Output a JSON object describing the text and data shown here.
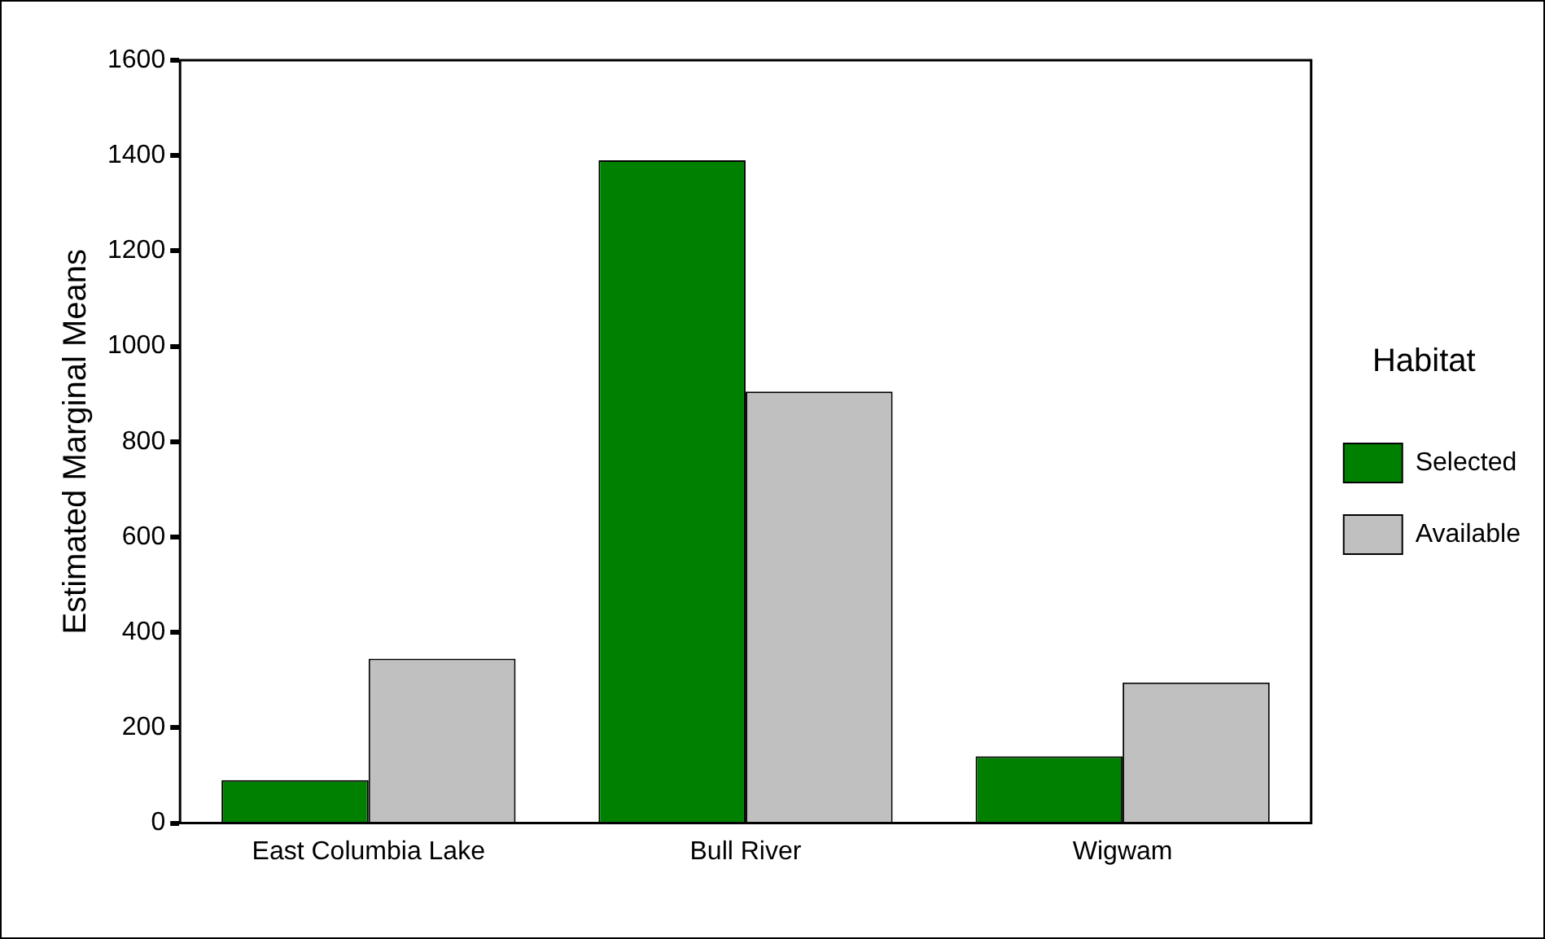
{
  "chart_data": {
    "type": "bar",
    "ylabel": "Estimated Marginal Means",
    "legend_title": "Habitat",
    "categories": [
      "East Columbia Lake",
      "Bull River",
      "Wigwam"
    ],
    "series": [
      {
        "name": "Selected",
        "color": "#008000",
        "values": [
          90,
          1390,
          140
        ]
      },
      {
        "name": "Available",
        "color": "#c0c0c0",
        "values": [
          345,
          905,
          295
        ]
      }
    ],
    "ylim": [
      0,
      1600
    ],
    "yticks": [
      0,
      200,
      400,
      600,
      800,
      1000,
      1200,
      1400,
      1600
    ],
    "grid": false,
    "legend": "right"
  }
}
